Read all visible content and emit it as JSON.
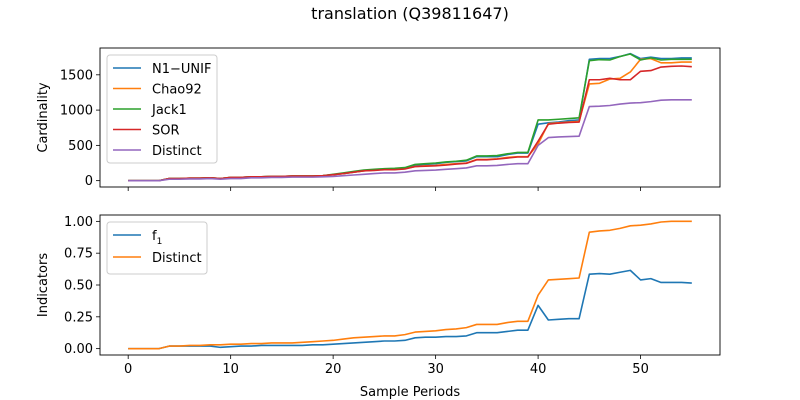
{
  "title": "translation (Q39811647)",
  "colors": {
    "blue": "#1f77b4",
    "orange": "#ff7f0e",
    "green": "#2ca02c",
    "red": "#d62728",
    "purple": "#9467bd"
  },
  "chart_data": [
    {
      "type": "line",
      "ylabel": "Cardinality",
      "xlabel": "",
      "xlim": [
        -2.75,
        57.75
      ],
      "ylim": [
        -90,
        1880
      ],
      "xticks": [
        0,
        10,
        20,
        30,
        40,
        50
      ],
      "xtick_labels": [
        "",
        "",
        "",
        "",
        "",
        ""
      ],
      "yticks": [
        0,
        500,
        1000,
        1500
      ],
      "ytick_labels": [
        "0",
        "500",
        "1000",
        "1500"
      ],
      "legend_position": "top-left",
      "x": [
        0,
        1,
        2,
        3,
        4,
        5,
        6,
        7,
        8,
        9,
        10,
        11,
        12,
        13,
        14,
        15,
        16,
        17,
        18,
        19,
        20,
        21,
        22,
        23,
        24,
        25,
        26,
        27,
        28,
        29,
        30,
        31,
        32,
        33,
        34,
        35,
        36,
        37,
        38,
        39,
        40,
        41,
        42,
        43,
        44,
        45,
        46,
        47,
        48,
        49,
        50,
        51,
        52,
        53,
        54,
        55
      ],
      "series": [
        {
          "name": "N1−UNIF",
          "color": "#1f77b4",
          "values": [
            0,
            0,
            0,
            0,
            30,
            30,
            35,
            35,
            40,
            30,
            45,
            45,
            55,
            55,
            60,
            60,
            65,
            65,
            65,
            70,
            85,
            100,
            120,
            140,
            150,
            160,
            160,
            170,
            220,
            230,
            240,
            260,
            270,
            280,
            340,
            340,
            340,
            370,
            390,
            390,
            800,
            820,
            830,
            850,
            860,
            1720,
            1730,
            1730,
            1760,
            1800,
            1730,
            1750,
            1730,
            1730,
            1740,
            1740
          ]
        },
        {
          "name": "Chao92",
          "color": "#ff7f0e",
          "values": [
            0,
            0,
            0,
            0,
            30,
            30,
            35,
            35,
            40,
            30,
            45,
            45,
            55,
            55,
            60,
            60,
            65,
            65,
            65,
            70,
            85,
            100,
            120,
            140,
            150,
            160,
            160,
            170,
            200,
            210,
            215,
            230,
            240,
            250,
            300,
            300,
            310,
            330,
            340,
            340,
            520,
            810,
            820,
            830,
            840,
            1370,
            1380,
            1440,
            1450,
            1540,
            1720,
            1730,
            1670,
            1670,
            1680,
            1680
          ]
        },
        {
          "name": "Jack1",
          "color": "#2ca02c",
          "values": [
            0,
            0,
            0,
            0,
            30,
            30,
            35,
            35,
            40,
            30,
            45,
            45,
            55,
            55,
            60,
            60,
            65,
            65,
            65,
            70,
            90,
            110,
            130,
            150,
            160,
            170,
            175,
            185,
            230,
            240,
            250,
            265,
            275,
            290,
            350,
            350,
            355,
            380,
            400,
            400,
            860,
            860,
            870,
            880,
            890,
            1700,
            1715,
            1710,
            1760,
            1795,
            1710,
            1740,
            1710,
            1720,
            1720,
            1720
          ]
        },
        {
          "name": "SOR",
          "color": "#d62728",
          "values": [
            0,
            0,
            0,
            0,
            30,
            30,
            35,
            35,
            40,
            30,
            45,
            45,
            55,
            55,
            60,
            60,
            65,
            65,
            65,
            70,
            85,
            100,
            120,
            140,
            145,
            155,
            155,
            165,
            200,
            205,
            210,
            220,
            235,
            245,
            295,
            295,
            305,
            320,
            335,
            335,
            560,
            800,
            815,
            825,
            830,
            1430,
            1430,
            1450,
            1430,
            1430,
            1550,
            1560,
            1610,
            1620,
            1625,
            1615
          ]
        },
        {
          "name": "Distinct",
          "color": "#9467bd",
          "values": [
            0,
            0,
            0,
            0,
            20,
            20,
            25,
            25,
            30,
            20,
            30,
            30,
            40,
            40,
            45,
            45,
            50,
            50,
            50,
            55,
            60,
            70,
            80,
            90,
            100,
            110,
            110,
            120,
            140,
            145,
            150,
            160,
            170,
            180,
            210,
            210,
            215,
            230,
            240,
            240,
            500,
            610,
            620,
            625,
            630,
            1050,
            1055,
            1065,
            1085,
            1100,
            1105,
            1120,
            1140,
            1145,
            1145,
            1145
          ]
        }
      ]
    },
    {
      "type": "line",
      "ylabel": "Indicators",
      "xlabel": "Sample Periods",
      "xlim": [
        -2.75,
        57.75
      ],
      "ylim": [
        -0.05,
        1.05
      ],
      "xticks": [
        0,
        10,
        20,
        30,
        40,
        50
      ],
      "xtick_labels": [
        "0",
        "10",
        "20",
        "30",
        "40",
        "50"
      ],
      "yticks": [
        0,
        0.25,
        0.5,
        0.75,
        1.0
      ],
      "ytick_labels": [
        "0.00",
        "0.25",
        "0.50",
        "0.75",
        "1.00"
      ],
      "legend_position": "top-left",
      "x": [
        0,
        1,
        2,
        3,
        4,
        5,
        6,
        7,
        8,
        9,
        10,
        11,
        12,
        13,
        14,
        15,
        16,
        17,
        18,
        19,
        20,
        21,
        22,
        23,
        24,
        25,
        26,
        27,
        28,
        29,
        30,
        31,
        32,
        33,
        34,
        35,
        36,
        37,
        38,
        39,
        40,
        41,
        42,
        43,
        44,
        45,
        46,
        47,
        48,
        49,
        50,
        51,
        52,
        53,
        54,
        55
      ],
      "series": [
        {
          "name": "f",
          "name_sub": "1",
          "color": "#1f77b4",
          "values": [
            0,
            0,
            0,
            0,
            0.02,
            0.02,
            0.02,
            0.02,
            0.02,
            0.01,
            0.015,
            0.02,
            0.02,
            0.025,
            0.025,
            0.025,
            0.025,
            0.025,
            0.03,
            0.03,
            0.035,
            0.04,
            0.045,
            0.05,
            0.055,
            0.06,
            0.06,
            0.065,
            0.085,
            0.09,
            0.09,
            0.095,
            0.095,
            0.1,
            0.125,
            0.125,
            0.125,
            0.135,
            0.145,
            0.145,
            0.34,
            0.225,
            0.23,
            0.235,
            0.235,
            0.585,
            0.59,
            0.585,
            0.6,
            0.615,
            0.54,
            0.55,
            0.52,
            0.52,
            0.52,
            0.515
          ]
        },
        {
          "name": "Distinct",
          "name_sub": "",
          "color": "#ff7f0e",
          "values": [
            0,
            0,
            0,
            0,
            0.02,
            0.02,
            0.025,
            0.025,
            0.03,
            0.03,
            0.035,
            0.035,
            0.04,
            0.04,
            0.045,
            0.045,
            0.045,
            0.05,
            0.055,
            0.06,
            0.065,
            0.075,
            0.085,
            0.09,
            0.095,
            0.1,
            0.1,
            0.11,
            0.13,
            0.135,
            0.14,
            0.15,
            0.155,
            0.165,
            0.19,
            0.19,
            0.19,
            0.205,
            0.215,
            0.215,
            0.42,
            0.54,
            0.545,
            0.55,
            0.555,
            0.915,
            0.925,
            0.93,
            0.945,
            0.965,
            0.97,
            0.98,
            0.995,
            1.0,
            1.0,
            1.0
          ]
        }
      ]
    }
  ]
}
